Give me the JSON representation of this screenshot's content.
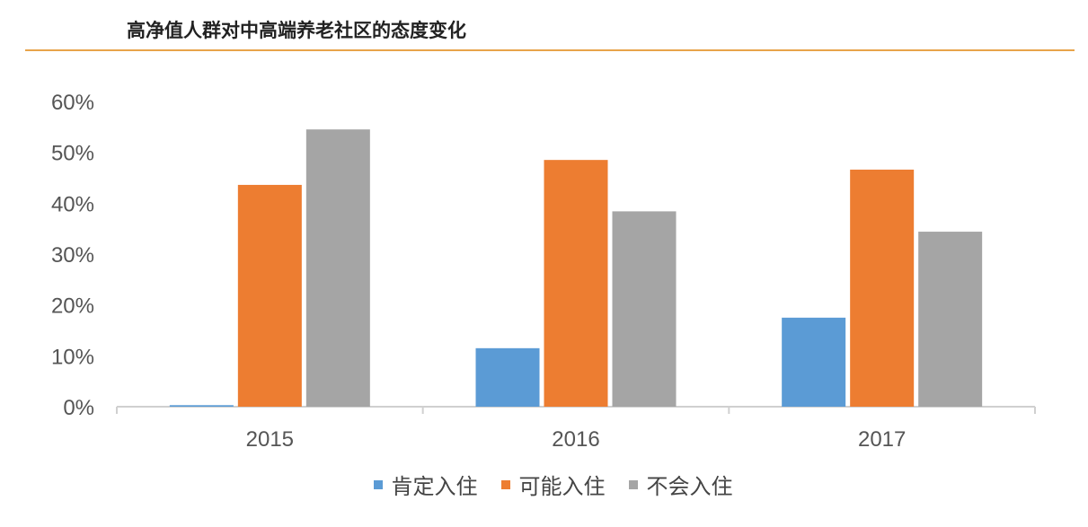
{
  "title": "高净值人群对中高端养老社区的态度变化",
  "chart_data": {
    "type": "bar",
    "title": "高净值人群对中高端养老社区的态度变化",
    "categories": [
      "2015",
      "2016",
      "2017"
    ],
    "series": [
      {
        "name": "肯定入住",
        "color": "#5b9bd5",
        "values": [
          0.3,
          11.5,
          17.5
        ]
      },
      {
        "name": "可能入住",
        "color": "#ed7d31",
        "values": [
          43.6,
          48.5,
          46.6
        ]
      },
      {
        "name": "不会入住",
        "color": "#a5a5a5",
        "values": [
          54.5,
          38.4,
          34.4
        ]
      }
    ],
    "yticks": [
      "0%",
      "10%",
      "20%",
      "30%",
      "40%",
      "50%",
      "60%"
    ],
    "ylim": [
      0,
      60
    ],
    "grid": false,
    "legend": "bottom",
    "xlabel": "",
    "ylabel": ""
  }
}
